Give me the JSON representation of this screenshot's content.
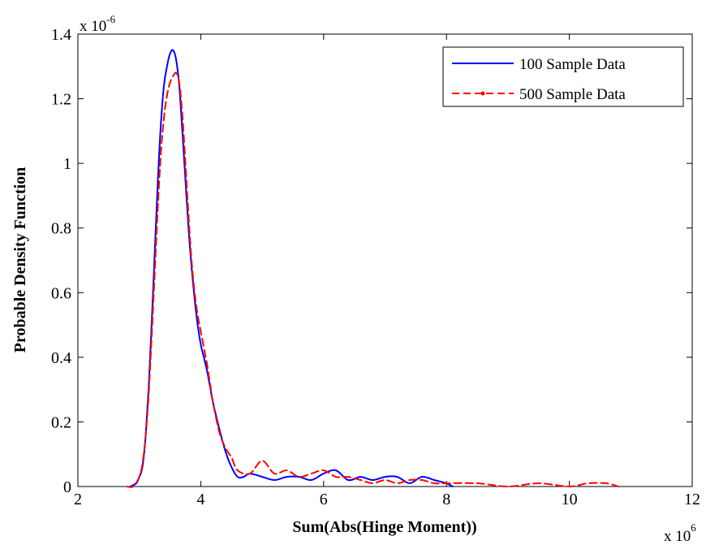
{
  "chart_data": {
    "type": "line",
    "xlabel": "Sum(Abs(Hinge Moment))",
    "ylabel": "Probable Density Function",
    "x_multiplier": {
      "base": "x 10",
      "exponent": "6"
    },
    "y_multiplier": {
      "base": "x 10",
      "exponent": "-6"
    },
    "xlim": [
      2,
      12
    ],
    "ylim": [
      0,
      1.4
    ],
    "xticks": [
      2,
      4,
      6,
      8,
      10,
      12
    ],
    "yticks": [
      0,
      0.2,
      0.4,
      0.6,
      0.8,
      1,
      1.2,
      1.4
    ],
    "ytick_labels": [
      "0",
      "0.2",
      "0.4",
      "0.6",
      "0.8",
      "1",
      "1.2",
      "1.4"
    ],
    "grid": false,
    "legend_position": "top-right",
    "series": [
      {
        "name": "100 Sample Data",
        "color": "#0000ff",
        "style": "solid",
        "x": [
          2.85,
          2.95,
          3.0,
          3.05,
          3.1,
          3.15,
          3.2,
          3.25,
          3.3,
          3.35,
          3.4,
          3.45,
          3.5,
          3.55,
          3.6,
          3.65,
          3.7,
          3.75,
          3.8,
          3.85,
          3.9,
          3.95,
          4.0,
          4.05,
          4.1,
          4.15,
          4.2,
          4.3,
          4.4,
          4.5,
          4.6,
          4.7,
          4.8,
          5.0,
          5.2,
          5.4,
          5.6,
          5.8,
          6.0,
          6.2,
          6.4,
          6.6,
          6.8,
          7.0,
          7.2,
          7.4,
          7.6,
          7.8,
          8.0,
          8.1
        ],
        "y": [
          0.0,
          0.01,
          0.03,
          0.06,
          0.15,
          0.3,
          0.5,
          0.72,
          0.94,
          1.12,
          1.24,
          1.3,
          1.34,
          1.35,
          1.32,
          1.24,
          1.1,
          0.95,
          0.8,
          0.68,
          0.58,
          0.5,
          0.44,
          0.4,
          0.36,
          0.31,
          0.26,
          0.18,
          0.11,
          0.06,
          0.03,
          0.03,
          0.04,
          0.03,
          0.02,
          0.03,
          0.03,
          0.02,
          0.04,
          0.05,
          0.02,
          0.03,
          0.02,
          0.03,
          0.03,
          0.01,
          0.03,
          0.02,
          0.01,
          0.0
        ]
      },
      {
        "name": "500 Sample Data",
        "color": "#ff0000",
        "style": "dashed",
        "x": [
          2.8,
          2.9,
          3.0,
          3.05,
          3.1,
          3.15,
          3.2,
          3.25,
          3.3,
          3.35,
          3.4,
          3.45,
          3.5,
          3.55,
          3.6,
          3.65,
          3.7,
          3.75,
          3.8,
          3.85,
          3.9,
          3.95,
          4.0,
          4.05,
          4.1,
          4.15,
          4.2,
          4.3,
          4.4,
          4.5,
          4.6,
          4.8,
          5.0,
          5.2,
          5.4,
          5.6,
          5.8,
          6.0,
          6.2,
          6.4,
          6.6,
          6.8,
          7.0,
          7.2,
          7.4,
          7.6,
          7.8,
          8.0,
          8.5,
          9.0,
          9.5,
          10.0,
          10.3,
          10.6,
          10.8
        ],
        "y": [
          0.0,
          0.0,
          0.03,
          0.07,
          0.15,
          0.28,
          0.46,
          0.66,
          0.86,
          1.03,
          1.14,
          1.21,
          1.25,
          1.27,
          1.28,
          1.25,
          1.15,
          1.0,
          0.84,
          0.7,
          0.6,
          0.53,
          0.48,
          0.43,
          0.38,
          0.32,
          0.26,
          0.17,
          0.12,
          0.09,
          0.05,
          0.04,
          0.08,
          0.04,
          0.05,
          0.03,
          0.04,
          0.05,
          0.03,
          0.03,
          0.02,
          0.01,
          0.02,
          0.01,
          0.02,
          0.02,
          0.01,
          0.01,
          0.01,
          0.0,
          0.01,
          0.0,
          0.01,
          0.01,
          0.0
        ]
      }
    ]
  }
}
